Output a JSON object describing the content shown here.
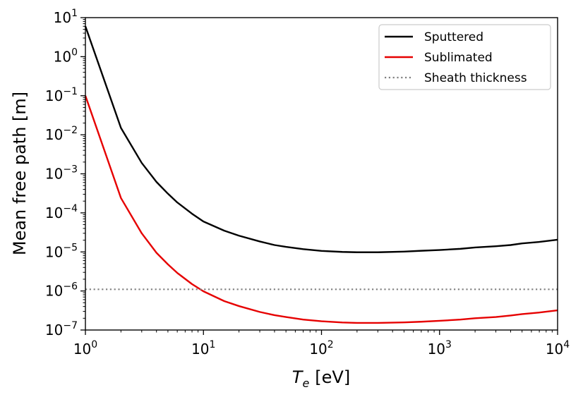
{
  "chart_data": {
    "type": "line",
    "title": "",
    "xlabel_main": "T",
    "xlabel_sub": "e",
    "xlabel_unit": "[eV]",
    "ylabel": "Mean free path [m]",
    "xscale": "log",
    "yscale": "log",
    "xlim": [
      1,
      10000
    ],
    "ylim": [
      1e-07,
      10
    ],
    "x_ticks": [
      {
        "value": 1,
        "base": "10",
        "exp": "0"
      },
      {
        "value": 10,
        "base": "10",
        "exp": "1"
      },
      {
        "value": 100,
        "base": "10",
        "exp": "2"
      },
      {
        "value": 1000,
        "base": "10",
        "exp": "3"
      },
      {
        "value": 10000,
        "base": "10",
        "exp": "4"
      }
    ],
    "y_ticks": [
      {
        "value": 1e-07,
        "base": "10",
        "exp": "−7"
      },
      {
        "value": 1e-06,
        "base": "10",
        "exp": "−6"
      },
      {
        "value": 1e-05,
        "base": "10",
        "exp": "−5"
      },
      {
        "value": 0.0001,
        "base": "10",
        "exp": "−4"
      },
      {
        "value": 0.001,
        "base": "10",
        "exp": "−3"
      },
      {
        "value": 0.01,
        "base": "10",
        "exp": "−2"
      },
      {
        "value": 0.1,
        "base": "10",
        "exp": "−1"
      },
      {
        "value": 1,
        "base": "10",
        "exp": "0"
      },
      {
        "value": 10,
        "base": "10",
        "exp": "1"
      }
    ],
    "legend_position": "top-right",
    "series": [
      {
        "name": "Sputtered",
        "color": "#000000",
        "style": "solid",
        "x": [
          1,
          2,
          3,
          4,
          5,
          6,
          8,
          10,
          15,
          20,
          30,
          40,
          50,
          70,
          100,
          150,
          200,
          300,
          500,
          700,
          1000,
          1500,
          2000,
          3000,
          4000,
          5000,
          7000,
          10000
        ],
        "y": [
          6.0,
          0.015,
          0.0019,
          0.00062,
          0.00031,
          0.000185,
          9.5e-05,
          6e-05,
          3.5e-05,
          2.6e-05,
          1.85e-05,
          1.5e-05,
          1.35e-05,
          1.18e-05,
          1.06e-05,
          1e-05,
          9.8e-06,
          9.8e-06,
          1.02e-05,
          1.07e-05,
          1.12e-05,
          1.2e-05,
          1.3e-05,
          1.4e-05,
          1.5e-05,
          1.65e-05,
          1.8e-05,
          2.05e-05
        ]
      },
      {
        "name": "Sublimated",
        "color": "#e60000",
        "style": "solid",
        "x": [
          1,
          2,
          3,
          4,
          5,
          6,
          8,
          10,
          15,
          20,
          30,
          40,
          50,
          70,
          100,
          150,
          200,
          300,
          500,
          700,
          1000,
          1500,
          2000,
          3000,
          4000,
          5000,
          7000,
          10000
        ],
        "y": [
          0.1,
          0.00024,
          3e-05,
          9.5e-06,
          4.8e-06,
          2.9e-06,
          1.5e-06,
          9.8e-07,
          5.5e-07,
          4.1e-07,
          2.9e-07,
          2.4e-07,
          2.15e-07,
          1.85e-07,
          1.68e-07,
          1.56e-07,
          1.52e-07,
          1.52e-07,
          1.57e-07,
          1.63e-07,
          1.72e-07,
          1.85e-07,
          2e-07,
          2.15e-07,
          2.35e-07,
          2.55e-07,
          2.8e-07,
          3.2e-07
        ]
      },
      {
        "name": "Sheath thickness",
        "color": "#808080",
        "style": "dotted",
        "x": [
          1,
          10000
        ],
        "y": [
          1.1e-06,
          1.1e-06
        ]
      }
    ]
  }
}
